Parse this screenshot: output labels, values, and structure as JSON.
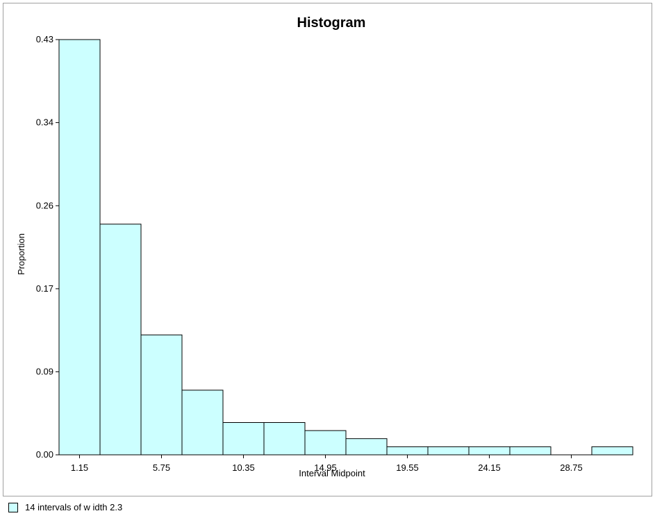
{
  "chart_data": {
    "type": "bar",
    "title": "Histogram",
    "xlabel": "Interval Midpoint",
    "ylabel": "Proportion",
    "y_ticks": [
      "0.00",
      "0.09",
      "0.17",
      "0.26",
      "0.34",
      "0.43"
    ],
    "y_tick_values": [
      0.0,
      0.0857,
      0.1714,
      0.2571,
      0.3429,
      0.4286
    ],
    "x_tick_labels": [
      "1.15",
      "5.75",
      "10.35",
      "14.95",
      "19.55",
      "24.15",
      "28.75"
    ],
    "ylim": [
      0,
      0.4286
    ],
    "bin_width": 2.3,
    "bins": [
      {
        "midpoint": 1.15,
        "value": 0.4286
      },
      {
        "midpoint": 3.45,
        "value": 0.2381
      },
      {
        "midpoint": 5.75,
        "value": 0.1238
      },
      {
        "midpoint": 8.05,
        "value": 0.0667
      },
      {
        "midpoint": 10.35,
        "value": 0.0333
      },
      {
        "midpoint": 12.65,
        "value": 0.0333
      },
      {
        "midpoint": 14.95,
        "value": 0.025
      },
      {
        "midpoint": 17.25,
        "value": 0.0167
      },
      {
        "midpoint": 19.55,
        "value": 0.0083
      },
      {
        "midpoint": 21.85,
        "value": 0.0083
      },
      {
        "midpoint": 24.15,
        "value": 0.0083
      },
      {
        "midpoint": 26.45,
        "value": 0.0083
      },
      {
        "midpoint": 28.75,
        "value": 0.0
      },
      {
        "midpoint": 31.05,
        "value": 0.0083
      }
    ],
    "bar_color": "#ccffff",
    "grid": false,
    "legend": {
      "text": "14 intervals of w idth 2.3",
      "placement": "bottom-left"
    }
  }
}
